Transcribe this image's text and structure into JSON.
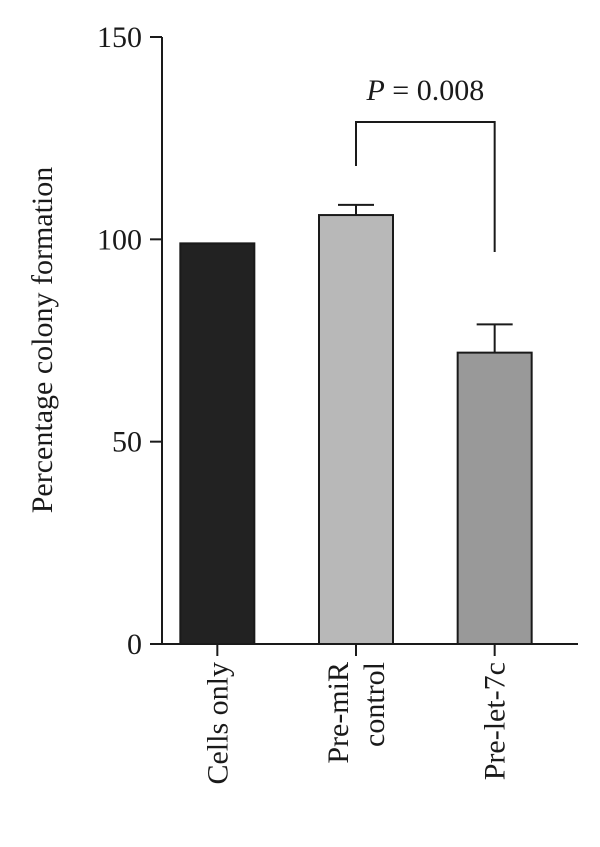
{
  "chart_data": {
    "type": "bar",
    "title": "",
    "xlabel": "",
    "ylabel": "Percentage colony formation",
    "ylim": [
      0,
      150
    ],
    "yticks": [
      0,
      50,
      100,
      150
    ],
    "categories": [
      [
        "Cells only"
      ],
      [
        "Pre-miR",
        "control"
      ],
      [
        "Pre-let-7c"
      ]
    ],
    "values": [
      99,
      106,
      72
    ],
    "errors": [
      0,
      2.5,
      7
    ],
    "bar_colors": [
      "#222222",
      "#b8b8b8",
      "#999999"
    ],
    "grid": false,
    "legend": "none",
    "annotations": [
      {
        "between": [
          1,
          2
        ],
        "label_prefix": "P",
        "label_suffix": " = 0.008"
      }
    ]
  }
}
